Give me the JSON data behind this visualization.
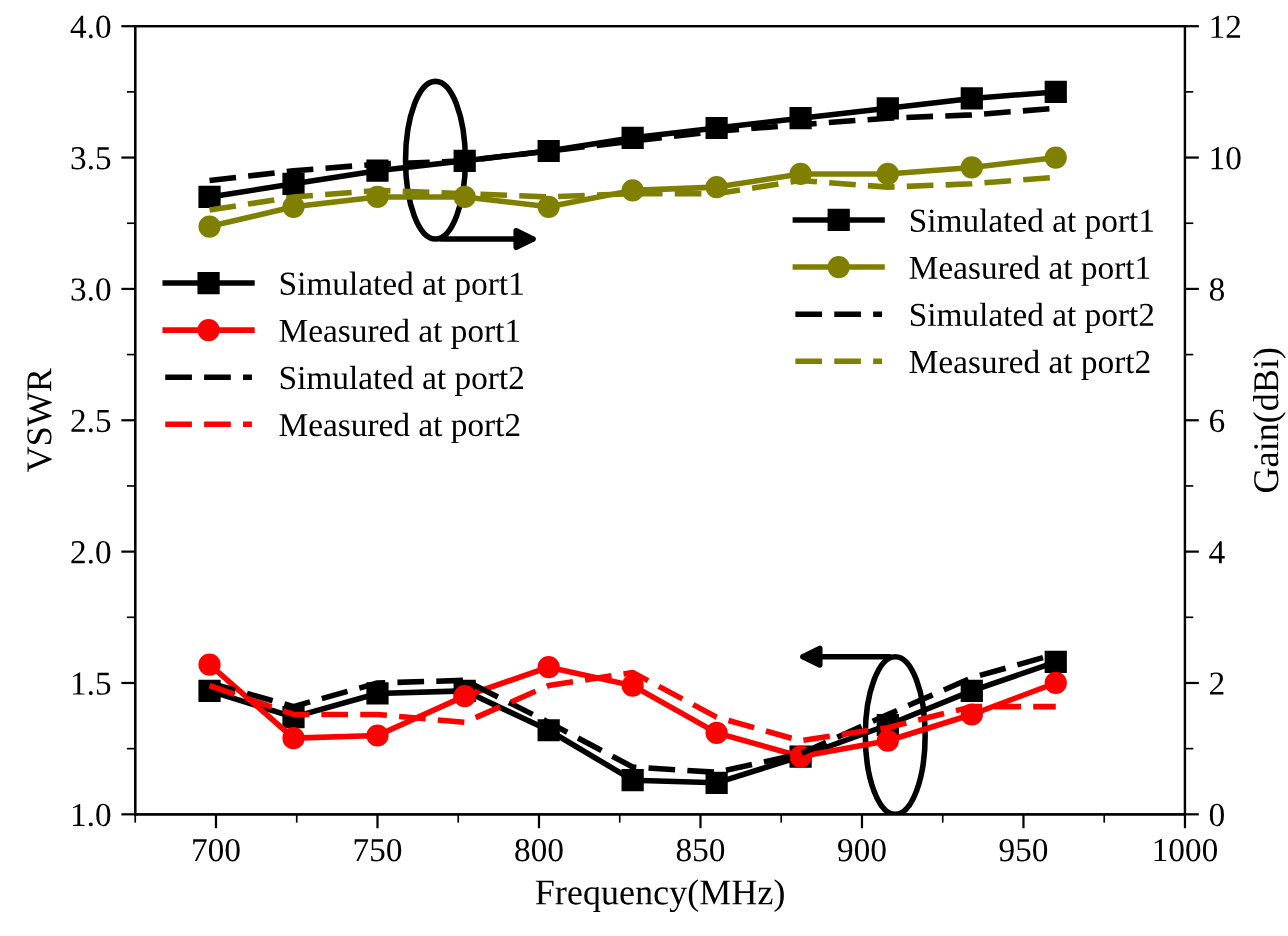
{
  "chart_data": {
    "type": "line",
    "xlabel": "Frequency(MHz)",
    "ylabel": "VSWR",
    "y2label": "Gain(dBi)",
    "x": [
      698,
      724,
      750,
      777,
      803,
      829,
      855,
      881,
      908,
      934,
      960
    ],
    "xlim": [
      675,
      1000
    ],
    "xticks": [
      700,
      750,
      800,
      850,
      900,
      950,
      1000
    ],
    "ylim": [
      1.0,
      4.0
    ],
    "yticks": [
      {
        "value": 1.0,
        "label": "1.0"
      },
      {
        "value": 1.5,
        "label": "1.5"
      },
      {
        "value": 2.0,
        "label": "2.0"
      },
      {
        "value": 2.5,
        "label": "2.5"
      },
      {
        "value": 3.0,
        "label": "3.0"
      },
      {
        "value": 3.5,
        "label": "3.5"
      },
      {
        "value": 4.0,
        "label": "4.0"
      }
    ],
    "y2lim": [
      0,
      12
    ],
    "y2ticks": [
      0,
      2,
      4,
      6,
      8,
      10,
      12
    ],
    "legend": "left",
    "grid": false,
    "series": [
      {
        "name": "Simulated at port1",
        "color": "#000000",
        "marker": "square",
        "line_style": "solid",
        "values": [
          1.47,
          1.37,
          1.46,
          1.47,
          1.32,
          1.13,
          1.12,
          1.22,
          1.34,
          1.47,
          1.58
        ]
      },
      {
        "name": "Measured at port1",
        "color": "#ff0000",
        "marker": "circle",
        "line_style": "solid",
        "values": [
          1.57,
          1.29,
          1.3,
          1.45,
          1.56,
          1.49,
          1.31,
          1.22,
          1.28,
          1.38,
          1.5
        ]
      },
      {
        "name": "Simulated at port2",
        "color": "#000000",
        "marker": "none",
        "line_style": "dashed",
        "values": [
          1.5,
          1.41,
          1.5,
          1.51,
          1.35,
          1.18,
          1.16,
          1.23,
          1.38,
          1.52,
          1.61
        ]
      },
      {
        "name": "Measured at port2",
        "color": "#ff0000",
        "marker": "none",
        "line_style": "dashed",
        "values": [
          1.49,
          1.38,
          1.38,
          1.35,
          1.49,
          1.54,
          1.37,
          1.28,
          1.33,
          1.41,
          1.41
        ]
      },
      {
        "name": "Simulated at port1",
        "color": "#000000",
        "marker": "square",
        "line_style": "solid",
        "axis": "y2",
        "values": [
          9.4,
          9.6,
          9.8,
          9.95,
          10.1,
          10.3,
          10.45,
          10.6,
          10.75,
          10.9,
          11.0
        ]
      },
      {
        "name": "Measured at port1",
        "color": "#808000",
        "marker": "circle",
        "line_style": "solid",
        "axis": "y2",
        "values": [
          8.95,
          9.25,
          9.4,
          9.4,
          9.25,
          9.5,
          9.55,
          9.75,
          9.75,
          9.85,
          10.0
        ]
      },
      {
        "name": "Simulated at port2",
        "color": "#000000",
        "marker": "none",
        "line_style": "dashed",
        "axis": "y2",
        "values": [
          9.65,
          9.8,
          9.9,
          9.95,
          10.1,
          10.25,
          10.4,
          10.5,
          10.6,
          10.65,
          10.75
        ]
      },
      {
        "name": "Measured at port2",
        "color": "#808000",
        "marker": "none",
        "line_style": "dashed",
        "axis": "y2",
        "values": [
          9.2,
          9.4,
          9.5,
          9.45,
          9.4,
          9.45,
          9.45,
          9.65,
          9.55,
          9.6,
          9.7
        ]
      }
    ]
  }
}
